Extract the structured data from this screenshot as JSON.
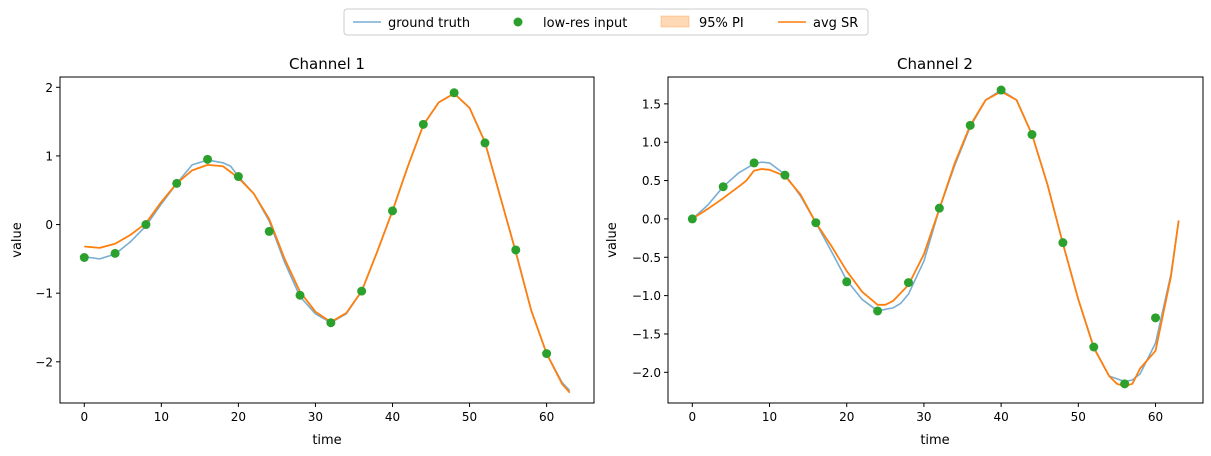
{
  "legend": {
    "items": [
      {
        "label": "ground truth",
        "kind": "line",
        "color": "#1f77b4",
        "alpha": 0.6
      },
      {
        "label": "low-res input",
        "kind": "marker",
        "color": "#2ca02c"
      },
      {
        "label": "95% PI",
        "kind": "patch",
        "color": "#ff7f0e",
        "alpha": 0.3
      },
      {
        "label": "avg SR",
        "kind": "line",
        "color": "#ff7f0e"
      }
    ],
    "placement": "top-center"
  },
  "chart_data": [
    {
      "type": "line",
      "title": "Channel 1",
      "xlabel": "time",
      "ylabel": "value",
      "xlim": [
        -3.15,
        66.15
      ],
      "ylim": [
        -2.6,
        2.15
      ],
      "xticks": [
        0,
        10,
        20,
        30,
        40,
        50,
        60
      ],
      "yticks": [
        -2,
        -1,
        0,
        1,
        2
      ],
      "ytick_labels": [
        "−2",
        "−1",
        "0",
        "1",
        "2"
      ],
      "grid": false,
      "series": [
        {
          "name": "ground truth",
          "color": "#1f77b4",
          "x": [
            0,
            2,
            4,
            6,
            8,
            10,
            12,
            14,
            16,
            18,
            19,
            20,
            22,
            24,
            26,
            28,
            30,
            32,
            34,
            36,
            38,
            40,
            42,
            44,
            46,
            48,
            50,
            52,
            54,
            56,
            58,
            60,
            62,
            63
          ],
          "y": [
            -0.47,
            -0.5,
            -0.43,
            -0.25,
            -0.02,
            0.3,
            0.6,
            0.87,
            0.94,
            0.9,
            0.85,
            0.7,
            0.45,
            0.05,
            -0.55,
            -1.05,
            -1.3,
            -1.43,
            -1.3,
            -0.97,
            -0.4,
            0.2,
            0.85,
            1.45,
            1.78,
            1.91,
            1.7,
            1.2,
            0.4,
            -0.4,
            -1.25,
            -1.88,
            -2.3,
            -2.42
          ]
        },
        {
          "name": "avg SR",
          "color": "#ff7f0e",
          "x": [
            0,
            2,
            4,
            6,
            8,
            10,
            12,
            14,
            16,
            18,
            20,
            22,
            24,
            26,
            28,
            30,
            32,
            34,
            36,
            38,
            40,
            42,
            44,
            46,
            48,
            50,
            52,
            54,
            56,
            58,
            60,
            62,
            63
          ],
          "y": [
            -0.32,
            -0.34,
            -0.28,
            -0.15,
            0.02,
            0.33,
            0.6,
            0.79,
            0.87,
            0.85,
            0.68,
            0.45,
            0.08,
            -0.5,
            -0.98,
            -1.27,
            -1.42,
            -1.29,
            -0.97,
            -0.4,
            0.2,
            0.85,
            1.45,
            1.78,
            1.91,
            1.7,
            1.2,
            0.4,
            -0.4,
            -1.25,
            -1.88,
            -2.32,
            -2.45
          ]
        }
      ],
      "band": {
        "name": "95% PI",
        "x": [
          0,
          2,
          4,
          6,
          8,
          10,
          12,
          14,
          16,
          18,
          20,
          22,
          24,
          26,
          28,
          30,
          32,
          34,
          36,
          38,
          40,
          42,
          44,
          46,
          48,
          50,
          52,
          54,
          56,
          58,
          60,
          62,
          63
        ],
        "lower": [
          -0.33,
          -0.35,
          -0.29,
          -0.16,
          0.01,
          0.32,
          0.59,
          0.78,
          0.86,
          0.84,
          0.67,
          0.44,
          0.07,
          -0.51,
          -0.99,
          -1.28,
          -1.43,
          -1.3,
          -0.98,
          -0.41,
          0.19,
          0.84,
          1.44,
          1.77,
          1.9,
          1.69,
          1.19,
          0.39,
          -0.41,
          -1.26,
          -1.89,
          -2.33,
          -2.46
        ],
        "upper": [
          -0.31,
          -0.33,
          -0.27,
          -0.14,
          0.03,
          0.34,
          0.61,
          0.8,
          0.88,
          0.86,
          0.69,
          0.46,
          0.09,
          -0.49,
          -0.97,
          -1.26,
          -1.41,
          -1.28,
          -0.96,
          -0.39,
          0.21,
          0.86,
          1.46,
          1.79,
          1.92,
          1.71,
          1.21,
          0.41,
          -0.39,
          -1.24,
          -1.87,
          -2.31,
          -2.44
        ]
      },
      "points": {
        "name": "low-res input",
        "color": "#2ca02c",
        "x": [
          0,
          4,
          8,
          12,
          16,
          20,
          24,
          28,
          32,
          36,
          40,
          44,
          48,
          52,
          56,
          60
        ],
        "y": [
          -0.48,
          -0.42,
          0.0,
          0.6,
          0.95,
          0.7,
          -0.1,
          -1.03,
          -1.43,
          -0.97,
          0.2,
          1.46,
          1.92,
          1.19,
          -0.37,
          -1.88
        ]
      }
    },
    {
      "type": "line",
      "title": "Channel 2",
      "xlabel": "time",
      "ylabel": "value",
      "xlim": [
        -3.15,
        66.15
      ],
      "ylim": [
        -2.4,
        1.85
      ],
      "xticks": [
        0,
        10,
        20,
        30,
        40,
        50,
        60
      ],
      "yticks": [
        -2.0,
        -1.5,
        -1.0,
        -0.5,
        0.0,
        0.5,
        1.0,
        1.5
      ],
      "ytick_labels": [
        "−2.0",
        "−1.5",
        "−1.0",
        "−0.5",
        "0.0",
        "0.5",
        "1.0",
        "1.5"
      ],
      "grid": false,
      "series": [
        {
          "name": "ground truth",
          "color": "#1f77b4",
          "x": [
            0,
            2,
            4,
            6,
            8,
            9,
            10,
            12,
            14,
            16,
            18,
            20,
            22,
            24,
            26,
            27,
            28,
            30,
            32,
            34,
            36,
            38,
            40,
            42,
            44,
            46,
            48,
            50,
            52,
            54,
            56,
            57,
            58,
            60,
            62,
            63
          ],
          "y": [
            0.0,
            0.18,
            0.42,
            0.6,
            0.72,
            0.74,
            0.73,
            0.58,
            0.3,
            -0.05,
            -0.42,
            -0.8,
            -1.05,
            -1.2,
            -1.16,
            -1.1,
            -0.98,
            -0.55,
            0.13,
            0.7,
            1.2,
            1.55,
            1.68,
            1.55,
            1.1,
            0.45,
            -0.32,
            -1.05,
            -1.67,
            -2.05,
            -2.12,
            -2.1,
            -2.02,
            -1.62,
            -0.72,
            -0.02
          ]
        },
        {
          "name": "avg SR",
          "color": "#ff7f0e",
          "x": [
            0,
            2,
            4,
            6,
            7,
            8,
            9,
            10,
            12,
            14,
            16,
            18,
            20,
            22,
            24,
            25,
            26,
            28,
            30,
            32,
            34,
            36,
            38,
            40,
            42,
            44,
            46,
            48,
            50,
            52,
            54,
            55,
            56,
            57,
            58,
            60,
            62,
            63
          ],
          "y": [
            0.0,
            0.13,
            0.27,
            0.42,
            0.5,
            0.63,
            0.65,
            0.64,
            0.56,
            0.32,
            -0.05,
            -0.35,
            -0.68,
            -0.95,
            -1.12,
            -1.12,
            -1.07,
            -0.86,
            -0.46,
            0.13,
            0.73,
            1.22,
            1.55,
            1.66,
            1.55,
            1.1,
            0.45,
            -0.32,
            -1.05,
            -1.68,
            -2.05,
            -2.15,
            -2.18,
            -2.15,
            -1.95,
            -1.72,
            -0.75,
            -0.02
          ]
        }
      ],
      "band": {
        "name": "95% PI",
        "x": [
          0,
          2,
          4,
          6,
          7,
          8,
          9,
          10,
          12,
          14,
          16,
          18,
          20,
          22,
          24,
          25,
          26,
          28,
          30,
          32,
          34,
          36,
          38,
          40,
          42,
          44,
          46,
          48,
          50,
          52,
          54,
          55,
          56,
          57,
          58,
          60,
          62,
          63
        ],
        "lower": [
          -0.01,
          0.12,
          0.26,
          0.41,
          0.49,
          0.62,
          0.64,
          0.63,
          0.55,
          0.31,
          -0.06,
          -0.36,
          -0.69,
          -0.96,
          -1.13,
          -1.13,
          -1.08,
          -0.87,
          -0.47,
          0.12,
          0.72,
          1.21,
          1.54,
          1.65,
          1.54,
          1.09,
          0.44,
          -0.33,
          -1.06,
          -1.69,
          -2.06,
          -2.16,
          -2.19,
          -2.16,
          -1.96,
          -1.73,
          -0.76,
          -0.03
        ],
        "upper": [
          0.01,
          0.14,
          0.28,
          0.43,
          0.51,
          0.64,
          0.66,
          0.65,
          0.57,
          0.33,
          -0.04,
          -0.34,
          -0.67,
          -0.94,
          -1.11,
          -1.11,
          -1.06,
          -0.85,
          -0.45,
          0.14,
          0.74,
          1.23,
          1.56,
          1.67,
          1.56,
          1.11,
          0.46,
          -0.31,
          -1.04,
          -1.67,
          -2.04,
          -2.14,
          -2.17,
          -2.14,
          -1.94,
          -1.71,
          -0.74,
          -0.01
        ]
      },
      "points": {
        "name": "low-res input",
        "color": "#2ca02c",
        "x": [
          0,
          4,
          8,
          12,
          16,
          20,
          24,
          28,
          32,
          36,
          40,
          44,
          48,
          52,
          56,
          60
        ],
        "y": [
          0.0,
          0.42,
          0.73,
          0.57,
          -0.05,
          -0.82,
          -1.2,
          -0.83,
          0.14,
          1.22,
          1.68,
          1.1,
          -0.31,
          -1.67,
          -2.15,
          -1.29
        ]
      }
    }
  ]
}
